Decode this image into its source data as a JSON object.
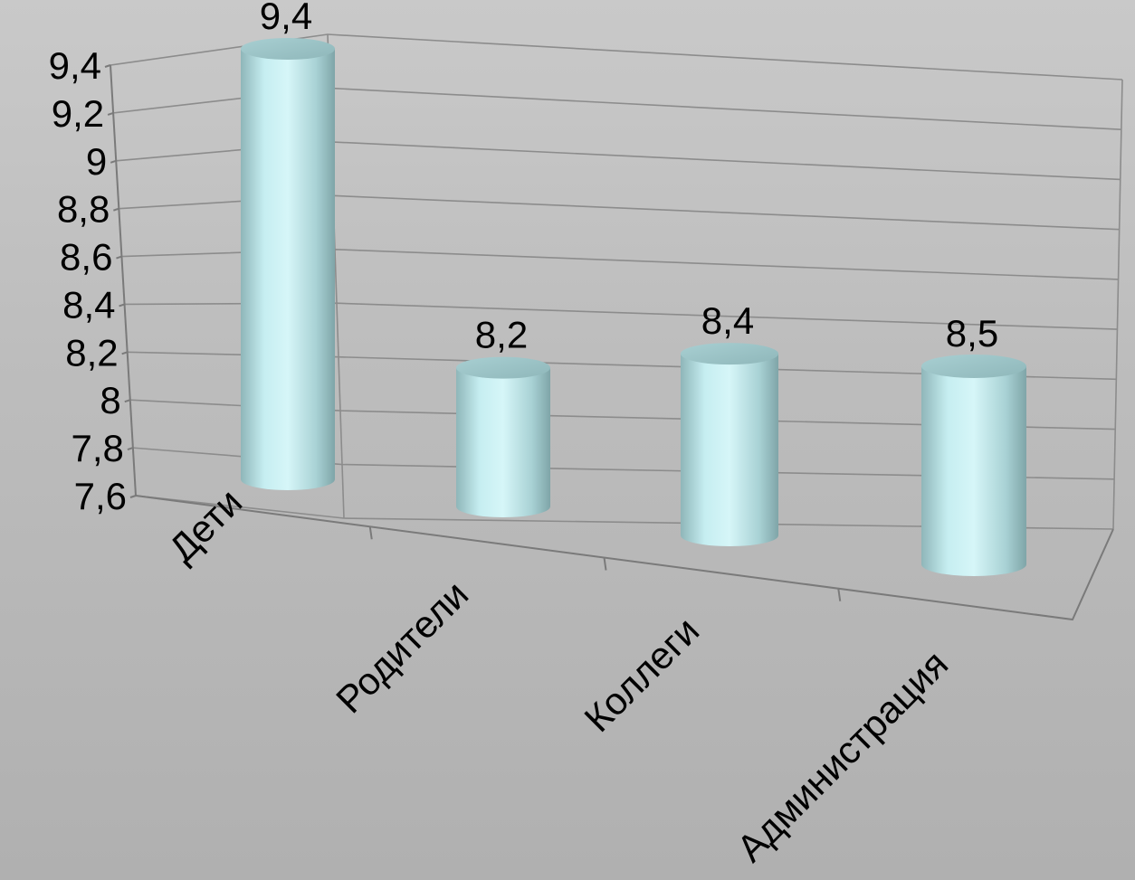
{
  "chart_data": {
    "type": "bar",
    "style": "3d-cylinder",
    "categories": [
      "Дети",
      "Родители",
      "Коллеги",
      "Администрация"
    ],
    "values": [
      9.4,
      8.2,
      8.4,
      8.5
    ],
    "value_labels": [
      "9,4",
      "8,2",
      "8,4",
      "8,5"
    ],
    "y_ticks": [
      "7,6",
      "7,8",
      "8",
      "8,2",
      "8,4",
      "8,6",
      "8,8",
      "9",
      "9,2",
      "9,4"
    ],
    "ylim": [
      7.6,
      9.4
    ],
    "grid": true,
    "legend": "none",
    "colors": {
      "bar": "#bfe9ec",
      "grid": "#8c8c8c"
    }
  }
}
